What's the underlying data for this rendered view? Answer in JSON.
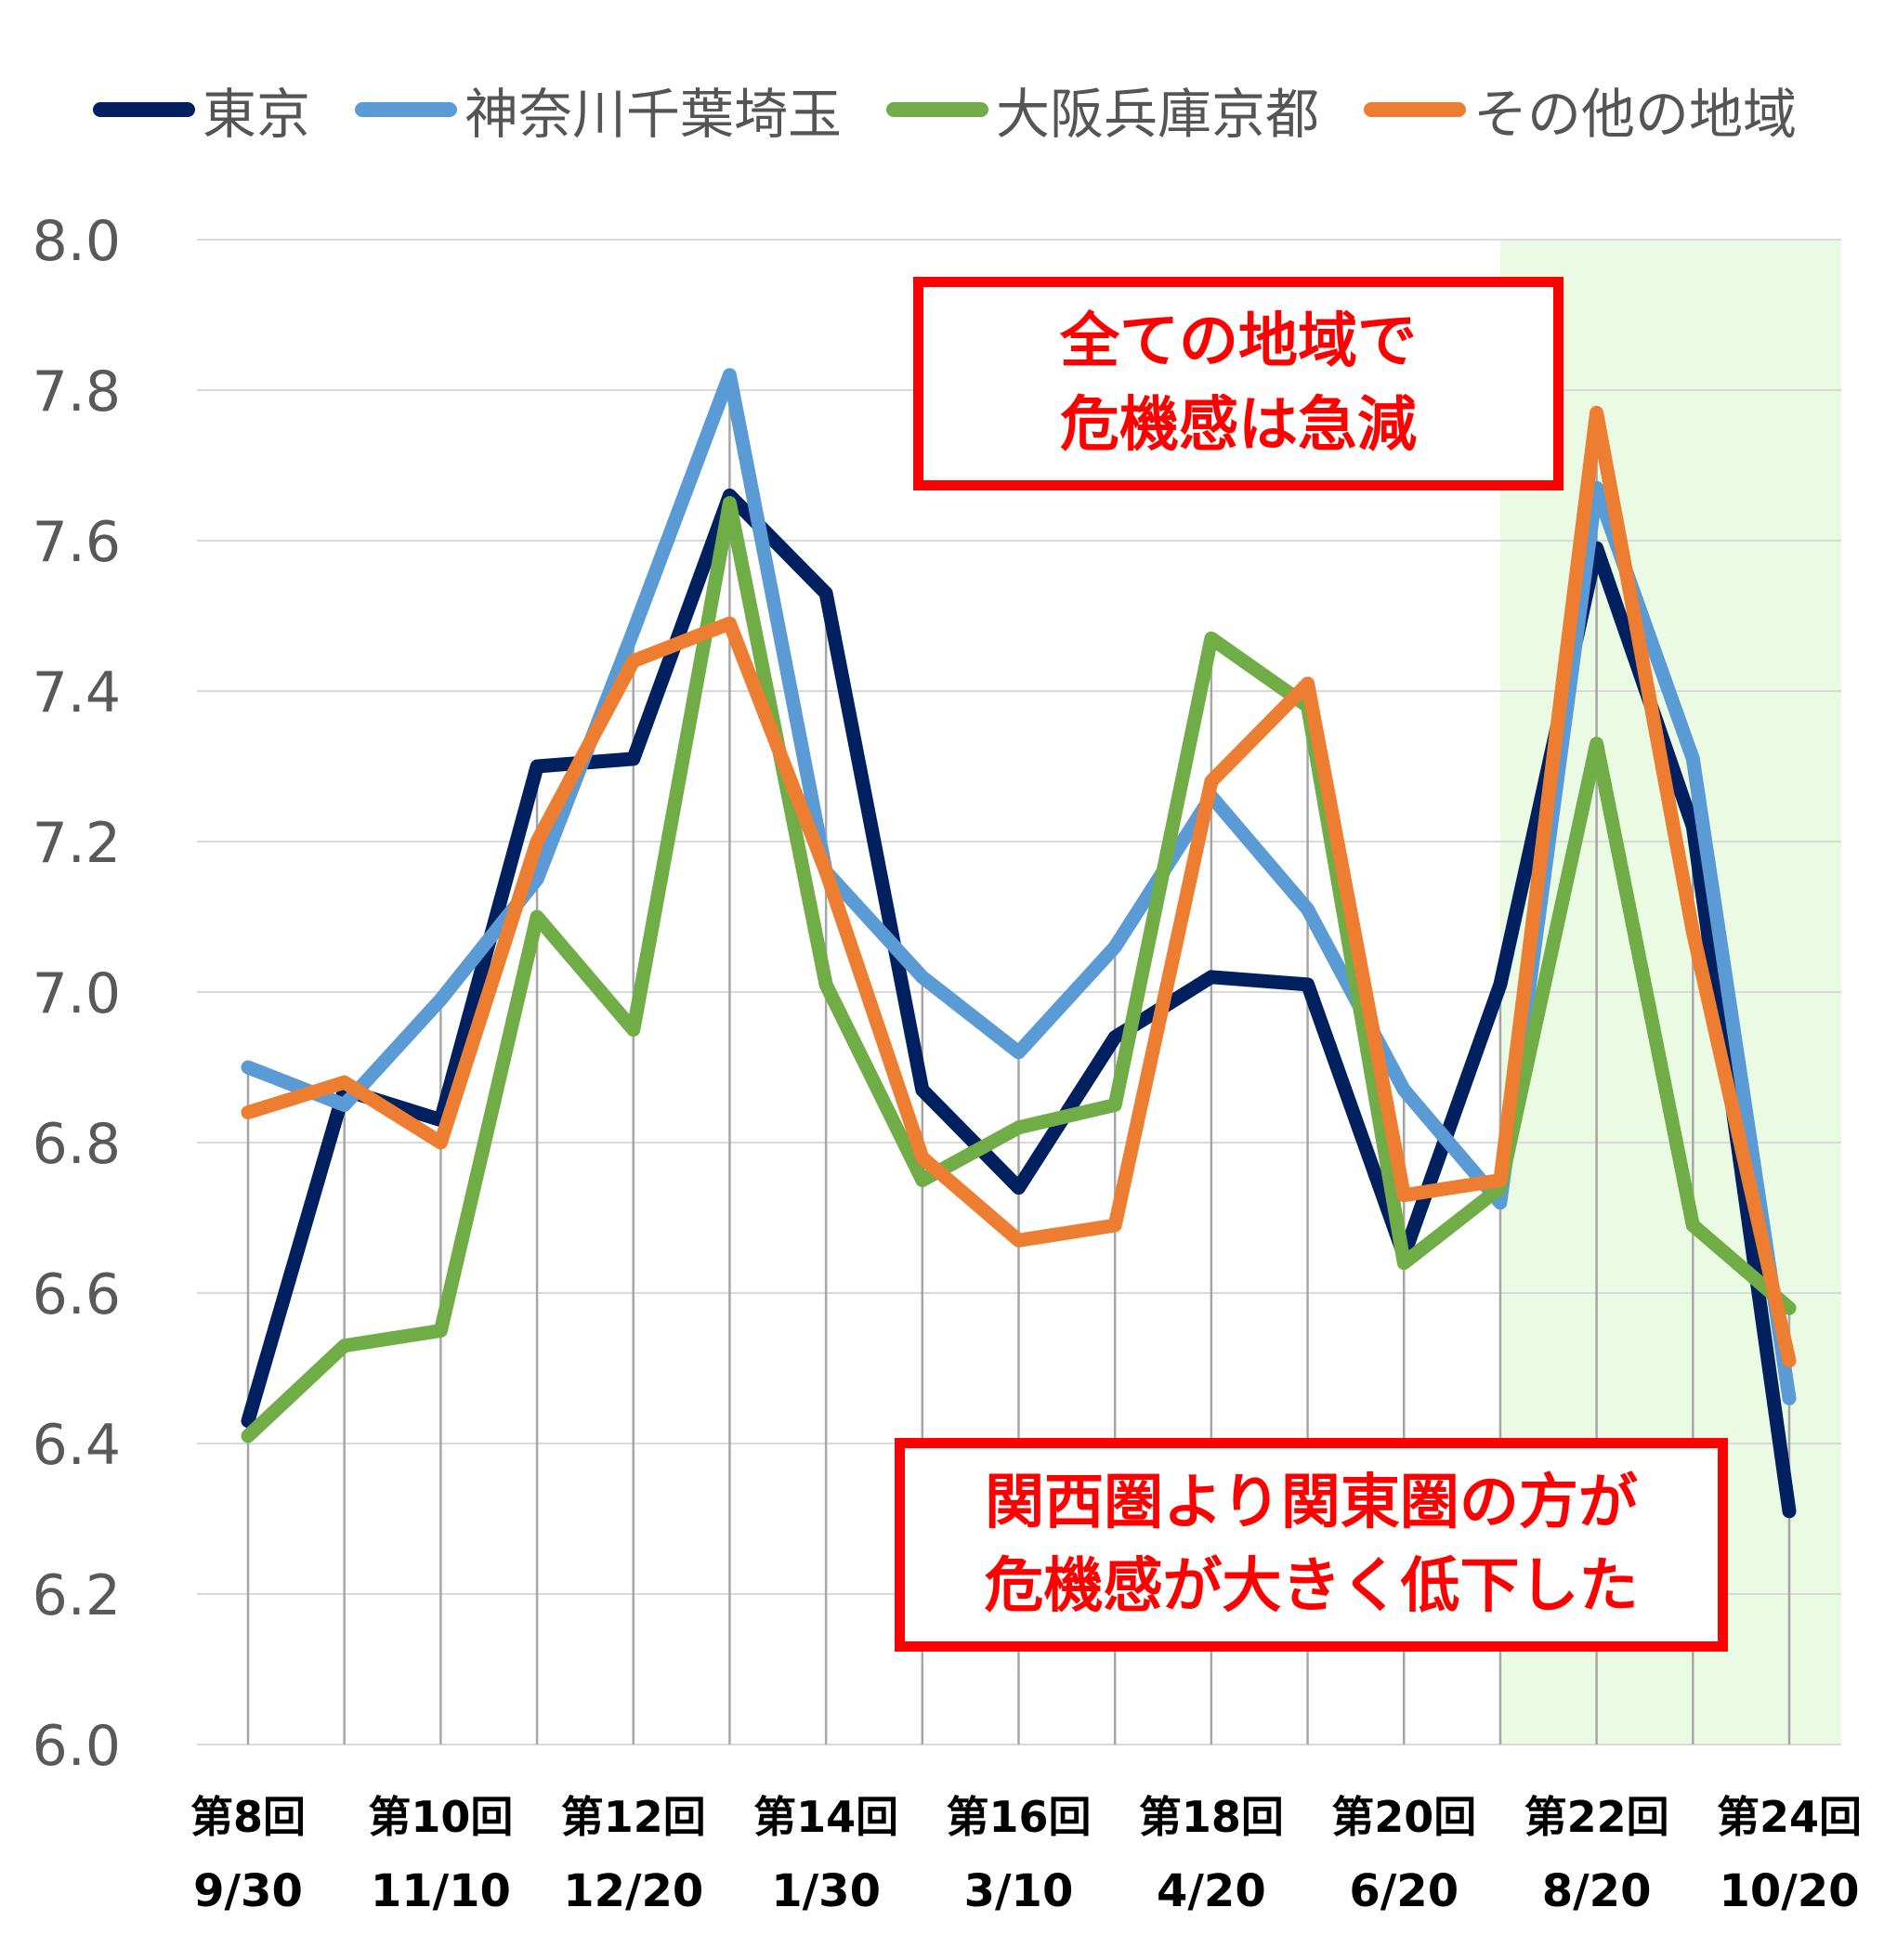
{
  "chart_data": {
    "type": "line",
    "categories": [
      [
        "第8回",
        "9/30"
      ],
      [
        "",
        ""
      ],
      [
        "第10回",
        "11/10"
      ],
      [
        "",
        ""
      ],
      [
        "第12回",
        "12/20"
      ],
      [
        "",
        ""
      ],
      [
        "第14回",
        "1/30"
      ],
      [
        "",
        ""
      ],
      [
        "第16回",
        "3/10"
      ],
      [
        "",
        ""
      ],
      [
        "第18回",
        "4/20"
      ],
      [
        "",
        ""
      ],
      [
        "第20回",
        "6/20"
      ],
      [
        "",
        ""
      ],
      [
        "第22回",
        "8/20"
      ],
      [
        "",
        ""
      ],
      [
        "第24回",
        "10/20"
      ]
    ],
    "series": [
      {
        "name": "東京",
        "color": "#002060",
        "values": [
          6.43,
          6.87,
          6.83,
          7.3,
          7.31,
          7.66,
          7.53,
          6.87,
          6.74,
          6.94,
          7.02,
          7.01,
          6.65,
          7.01,
          7.59,
          7.22,
          6.31
        ]
      },
      {
        "name": "神奈川千葉埼玉",
        "color": "#5b9bd5",
        "values": [
          6.9,
          6.85,
          6.99,
          7.15,
          7.48,
          7.82,
          7.16,
          7.02,
          6.92,
          7.06,
          7.26,
          7.11,
          6.87,
          6.72,
          7.67,
          7.31,
          6.46
        ]
      },
      {
        "name": "大阪兵庫京都",
        "color": "#70ad47",
        "values": [
          6.41,
          6.53,
          6.55,
          7.1,
          6.95,
          7.65,
          7.01,
          6.75,
          6.82,
          6.85,
          7.47,
          7.38,
          6.64,
          6.74,
          7.33,
          6.69,
          6.58
        ]
      },
      {
        "name": "その他の地域",
        "color": "#ed7d31",
        "values": [
          6.84,
          6.88,
          6.8,
          7.2,
          7.44,
          7.49,
          7.16,
          6.78,
          6.67,
          6.69,
          7.28,
          7.41,
          6.73,
          6.75,
          7.77,
          7.08,
          6.51
        ]
      }
    ],
    "y_ticks": [
      "6.0",
      "6.2",
      "6.4",
      "6.6",
      "6.8",
      "7.0",
      "7.2",
      "7.4",
      "7.6",
      "7.8",
      "8.0"
    ],
    "ylim": [
      6.0,
      8.0
    ],
    "grid": true,
    "legend_position": "top",
    "highlight_region": {
      "from_index": 13,
      "to_index": 16,
      "color": "#ebfbe3"
    },
    "annotations": [
      {
        "lines": [
          "全ての地域で",
          "危機感は急減"
        ]
      },
      {
        "lines": [
          "関西圏より関東圏の方が",
          "危機感が大きく低下した"
        ]
      }
    ],
    "title": "",
    "xlabel": "",
    "ylabel": ""
  }
}
